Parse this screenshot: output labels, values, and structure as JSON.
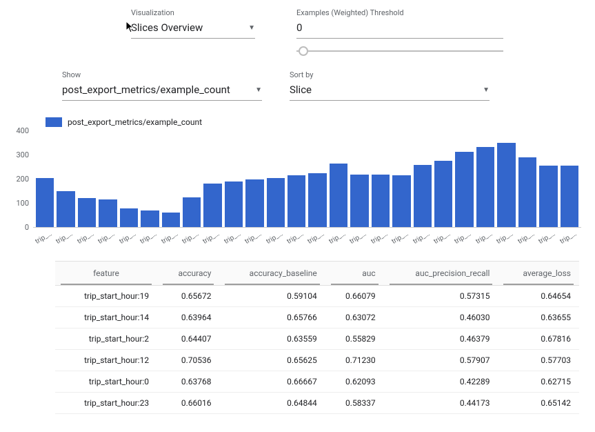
{
  "colors": {
    "bar": "#3366cc",
    "grid": "#cccccc",
    "text_muted": "#5f6368",
    "background": "#ffffff",
    "table_header_bg": "#fafafa",
    "table_border": "#e0e0e0",
    "sort_underline": "#9e9e9e"
  },
  "controls": {
    "visualization": {
      "label": "Visualization",
      "value": "Slices Overview"
    },
    "threshold": {
      "label": "Examples (Weighted) Threshold",
      "value": "0",
      "slider_pos": 0.03
    },
    "show": {
      "label": "Show",
      "value": "post_export_metrics/example_count"
    },
    "sort": {
      "label": "Sort by",
      "value": "Slice"
    }
  },
  "chart": {
    "type": "bar",
    "legend_label": "post_export_metrics/example_count",
    "ylim": [
      0,
      400
    ],
    "ytick_step": 100,
    "yticks": [
      0,
      100,
      200,
      300,
      400
    ],
    "bar_color": "#3366cc",
    "x_label_text": "trip_s…",
    "values": [
      205,
      150,
      120,
      115,
      78,
      70,
      60,
      125,
      180,
      190,
      200,
      205,
      215,
      225,
      265,
      220,
      220,
      215,
      260,
      275,
      315,
      335,
      350,
      290,
      255,
      255
    ]
  },
  "table": {
    "columns": [
      "feature",
      "accuracy",
      "accuracy_baseline",
      "auc",
      "auc_precision_recall",
      "average_loss"
    ],
    "rows": [
      [
        "trip_start_hour:19",
        "0.65672",
        "0.59104",
        "0.66079",
        "0.57315",
        "0.64654"
      ],
      [
        "trip_start_hour:14",
        "0.63964",
        "0.65766",
        "0.63072",
        "0.46030",
        "0.63655"
      ],
      [
        "trip_start_hour:2",
        "0.64407",
        "0.63559",
        "0.55829",
        "0.46379",
        "0.67816"
      ],
      [
        "trip_start_hour:12",
        "0.70536",
        "0.65625",
        "0.71230",
        "0.57907",
        "0.57703"
      ],
      [
        "trip_start_hour:0",
        "0.63768",
        "0.66667",
        "0.62093",
        "0.42289",
        "0.62715"
      ],
      [
        "trip_start_hour:23",
        "0.66016",
        "0.64844",
        "0.58337",
        "0.44173",
        "0.65142"
      ]
    ]
  }
}
